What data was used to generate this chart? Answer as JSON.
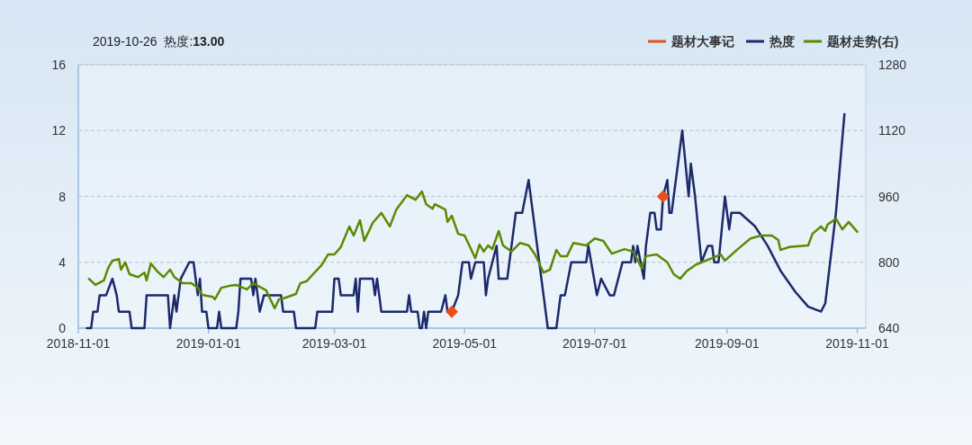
{
  "chart_data": {
    "type": "line",
    "xlim": [
      "2018-11-01",
      "2019-11-05"
    ],
    "xticks": [
      "2018-11-01",
      "2019-01-01",
      "2019-03-01",
      "2019-05-01",
      "2019-07-01",
      "2019-09-01",
      "2019-11-01"
    ],
    "ylim": [
      0,
      16
    ],
    "yticks": [
      0,
      4,
      8,
      12,
      16
    ],
    "y2lim": [
      640,
      1280
    ],
    "y2ticks": [
      640,
      800,
      960,
      1120,
      1280
    ],
    "grid": "y",
    "legend": "top right",
    "line_style": "solid",
    "marker": "none",
    "annotations": [
      "2019-10-26  热度:**13.00**"
    ],
    "series": [
      {
        "name": "题材大事记",
        "type": "scatter",
        "marker": "diamond",
        "color": "#e8501a",
        "x": [
          "2019-04-25",
          "2019-08-02"
        ],
        "values": [
          1,
          8
        ]
      },
      {
        "name": "热度",
        "color": "#1b2a6b",
        "x": [
          "2018-11-05",
          "2018-11-07",
          "2018-11-08",
          "2018-11-10",
          "2018-11-11",
          "2018-11-14",
          "2018-11-17",
          "2018-11-19",
          "2018-11-20",
          "2018-11-25",
          "2018-11-26",
          "2018-12-02",
          "2018-12-03",
          "2018-12-13",
          "2018-12-14",
          "2018-12-16",
          "2018-12-17",
          "2018-12-19",
          "2018-12-23",
          "2018-12-25",
          "2018-12-27",
          "2018-12-28",
          "2018-12-29",
          "2018-12-31",
          "2019-01-01",
          "2019-01-05",
          "2019-01-06",
          "2019-01-07",
          "2019-01-14",
          "2019-01-15",
          "2019-01-16",
          "2019-01-21",
          "2019-01-22",
          "2019-01-23",
          "2019-01-25",
          "2019-01-27",
          "2019-02-04",
          "2019-02-05",
          "2019-02-10",
          "2019-02-11",
          "2019-02-20",
          "2019-02-21",
          "2019-02-28",
          "2019-03-01",
          "2019-03-03",
          "2019-03-04",
          "2019-03-10",
          "2019-03-11",
          "2019-03-12",
          "2019-03-13",
          "2019-03-19",
          "2019-03-20",
          "2019-03-21",
          "2019-03-23",
          "2019-04-04",
          "2019-04-05",
          "2019-04-06",
          "2019-04-09",
          "2019-04-10",
          "2019-04-11",
          "2019-04-12",
          "2019-04-13",
          "2019-04-14",
          "2019-04-20",
          "2019-04-22",
          "2019-04-23",
          "2019-04-25",
          "2019-04-28",
          "2019-04-30",
          "2019-05-03",
          "2019-05-04",
          "2019-05-06",
          "2019-05-10",
          "2019-05-11",
          "2019-05-12",
          "2019-05-14",
          "2019-05-16",
          "2019-05-17",
          "2019-05-21",
          "2019-05-23",
          "2019-05-24",
          "2019-05-25",
          "2019-05-28",
          "2019-05-31",
          "2019-06-02",
          "2019-06-05",
          "2019-06-07",
          "2019-06-09",
          "2019-06-13",
          "2019-06-15",
          "2019-06-17",
          "2019-06-20",
          "2019-06-27",
          "2019-06-28",
          "2019-07-02",
          "2019-07-04",
          "2019-07-08",
          "2019-07-10",
          "2019-07-14",
          "2019-07-18",
          "2019-07-19",
          "2019-07-20",
          "2019-07-21",
          "2019-07-24",
          "2019-07-25",
          "2019-07-27",
          "2019-07-29",
          "2019-07-30",
          "2019-08-01",
          "2019-08-02",
          "2019-08-04",
          "2019-08-05",
          "2019-08-06",
          "2019-08-07",
          "2019-08-11",
          "2019-08-14",
          "2019-08-15",
          "2019-08-17",
          "2019-08-20",
          "2019-08-23",
          "2019-08-25",
          "2019-08-26",
          "2019-08-28",
          "2019-08-31",
          "2019-09-02",
          "2019-09-03",
          "2019-09-07",
          "2019-09-14",
          "2019-09-20",
          "2019-09-26",
          "2019-10-03",
          "2019-10-09",
          "2019-10-15",
          "2019-10-17",
          "2019-10-22",
          "2019-10-26"
        ],
        "values": [
          0,
          0,
          1,
          1,
          2,
          2,
          3,
          2,
          1,
          1,
          0,
          0,
          2,
          2,
          0,
          2,
          1,
          3,
          4,
          4,
          2,
          3,
          1,
          1,
          0,
          0,
          1,
          0,
          0,
          1,
          3,
          3,
          2,
          3,
          1,
          2,
          2,
          1,
          1,
          0,
          0,
          1,
          1,
          3,
          3,
          2,
          2,
          3,
          1,
          3,
          3,
          2,
          3,
          1,
          1,
          2,
          1,
          1,
          0,
          0,
          1,
          0,
          1,
          1,
          2,
          1,
          1,
          2,
          4,
          4,
          3,
          4,
          4,
          2,
          3,
          4,
          5,
          3,
          3,
          5,
          6,
          7,
          7,
          9,
          7,
          4,
          2,
          0,
          0,
          2,
          2,
          4,
          4,
          5,
          2,
          3,
          2,
          2,
          4,
          4,
          5,
          4,
          5,
          3,
          5,
          7,
          7,
          6,
          6,
          8,
          9,
          7,
          7,
          8,
          12,
          8,
          10,
          8,
          4,
          5,
          5,
          4,
          4,
          8,
          6,
          7,
          7,
          6.2,
          5,
          3.5,
          2.2,
          1.3,
          1,
          1.5,
          7,
          13
        ]
      },
      {
        "name": "题材走势(右)",
        "color": "#5a8a00",
        "axis": "y2",
        "x": [
          "2018-11-06",
          "2018-11-09",
          "2018-11-13",
          "2018-11-15",
          "2018-11-17",
          "2018-11-20",
          "2018-11-21",
          "2018-11-23",
          "2018-11-25",
          "2018-11-29",
          "2018-12-02",
          "2018-12-03",
          "2018-12-05",
          "2018-12-08",
          "2018-12-11",
          "2018-12-14",
          "2018-12-16",
          "2018-12-20",
          "2018-12-24",
          "2018-12-27",
          "2018-12-29",
          "2019-01-03",
          "2019-01-04",
          "2019-01-07",
          "2019-01-11",
          "2019-01-14",
          "2019-01-19",
          "2019-01-22",
          "2019-01-28",
          "2019-01-30",
          "2019-02-01",
          "2019-02-03",
          "2019-02-05",
          "2019-02-11",
          "2019-02-13",
          "2019-02-16",
          "2019-02-19",
          "2019-02-23",
          "2019-02-26",
          "2019-03-01",
          "2019-03-04",
          "2019-03-08",
          "2019-03-10",
          "2019-03-13",
          "2019-03-15",
          "2019-03-19",
          "2019-03-23",
          "2019-03-27",
          "2019-03-30",
          "2019-04-04",
          "2019-04-08",
          "2019-04-11",
          "2019-04-13",
          "2019-04-16",
          "2019-04-17",
          "2019-04-22",
          "2019-04-23",
          "2019-04-25",
          "2019-04-28",
          "2019-05-01",
          "2019-05-03",
          "2019-05-06",
          "2019-05-08",
          "2019-05-10",
          "2019-05-12",
          "2019-05-14",
          "2019-05-17",
          "2019-05-19",
          "2019-05-23",
          "2019-05-27",
          "2019-05-31",
          "2019-06-03",
          "2019-06-07",
          "2019-06-10",
          "2019-06-13",
          "2019-06-15",
          "2019-06-18",
          "2019-06-21",
          "2019-06-27",
          "2019-07-01",
          "2019-07-05",
          "2019-07-09",
          "2019-07-15",
          "2019-07-19",
          "2019-07-23",
          "2019-07-25",
          "2019-07-30",
          "2019-08-04",
          "2019-08-07",
          "2019-08-10",
          "2019-08-13",
          "2019-08-17",
          "2019-08-20",
          "2019-08-25",
          "2019-08-29",
          "2019-08-31",
          "2019-09-06",
          "2019-09-12",
          "2019-09-17",
          "2019-09-22",
          "2019-09-25",
          "2019-09-26",
          "2019-09-30",
          "2019-10-09",
          "2019-10-11",
          "2019-10-15",
          "2019-10-17",
          "2019-10-18",
          "2019-10-22",
          "2019-10-25",
          "2019-10-28",
          "2019-11-01"
        ],
        "values": [
          760,
          745,
          756,
          786,
          804,
          808,
          782,
          800,
          771,
          764,
          775,
          756,
          797,
          778,
          764,
          782,
          764,
          749,
          749,
          738,
          721,
          716,
          710,
          738,
          743,
          745,
          734,
          749,
          732,
          710,
          688,
          710,
          712,
          723,
          749,
          754,
          771,
          793,
          819,
          819,
          837,
          887,
          865,
          902,
          852,
          896,
          920,
          887,
          928,
          963,
          952,
          972,
          941,
          930,
          941,
          928,
          898,
          913,
          869,
          865,
          843,
          810,
          843,
          826,
          841,
          832,
          876,
          841,
          826,
          847,
          841,
          819,
          775,
          782,
          830,
          815,
          815,
          847,
          841,
          858,
          852,
          821,
          832,
          826,
          786,
          815,
          819,
          800,
          771,
          760,
          778,
          793,
          800,
          810,
          819,
          804,
          832,
          858,
          865,
          865,
          854,
          830,
          837,
          841,
          869,
          887,
          876,
          891,
          906,
          880,
          898,
          874
        ]
      }
    ]
  }
}
